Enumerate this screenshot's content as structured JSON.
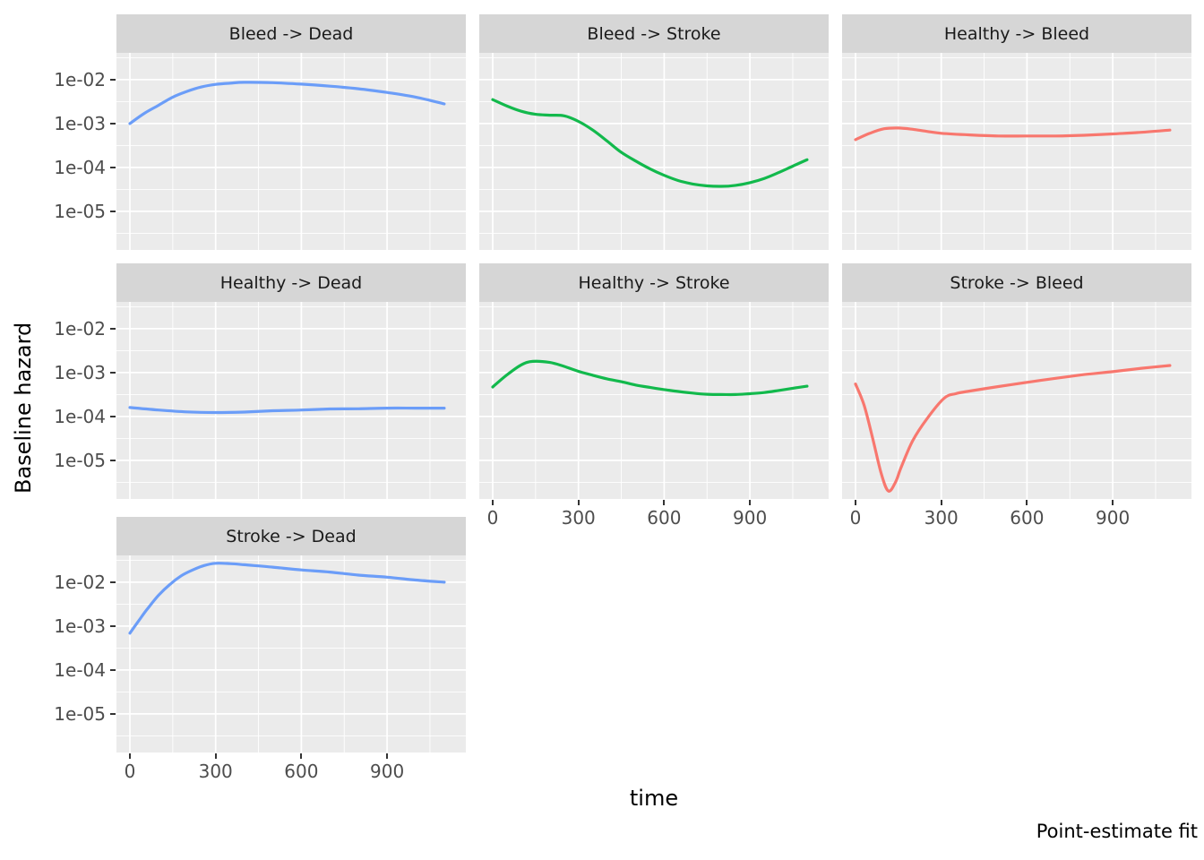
{
  "chart_data": {
    "type": "line",
    "title": "",
    "xlabel": "time",
    "ylabel": "Baseline hazard",
    "caption": "Point-estimate fit",
    "y_scale": "log10",
    "x_range": [
      0,
      1175
    ],
    "y_range_log10": [
      -5.9,
      -1.39
    ],
    "grid": true,
    "legend_position": "none",
    "x_major_ticks": [
      0,
      300,
      600,
      900
    ],
    "x_minor_ticks": [
      150,
      450,
      750,
      1050
    ],
    "y_ticks": [
      {
        "label": "1e-02",
        "value": 0.01
      },
      {
        "label": "1e-03",
        "value": 0.001
      },
      {
        "label": "1e-04",
        "value": 0.0001
      },
      {
        "label": "1e-05",
        "value": 1e-05
      }
    ],
    "y_minor_ticks_log10": [
      -1.5,
      -2.5,
      -3.5,
      -4.5,
      -5.5
    ],
    "colors": {
      "blue": "#6B9DF8",
      "green": "#12B94C",
      "red": "#F8776E",
      "panel_bg": "#EBEBEB",
      "strip_bg": "#D6D6D6",
      "gridline": "#FFFFFF",
      "tick_text": "#4D4D4D",
      "strip_text": "#1A1A1A"
    },
    "facets": [
      {
        "label": "Bleed -> Dead",
        "row": 0,
        "col": 0,
        "color": "blue",
        "show_x_axis": false,
        "show_y_axis": true,
        "time": [
          0,
          50,
          100,
          150,
          200,
          250,
          300,
          350,
          400,
          500,
          600,
          700,
          800,
          900,
          1000,
          1100
        ],
        "hazard": [
          0.001,
          0.0017,
          0.0026,
          0.004,
          0.0054,
          0.0068,
          0.0078,
          0.0083,
          0.0087,
          0.0085,
          0.0079,
          0.0071,
          0.0062,
          0.0051,
          0.004,
          0.0028
        ]
      },
      {
        "label": "Bleed -> Stroke",
        "row": 0,
        "col": 1,
        "color": "green",
        "show_x_axis": false,
        "show_y_axis": false,
        "time": [
          0,
          50,
          100,
          150,
          200,
          250,
          300,
          350,
          400,
          450,
          500,
          550,
          600,
          650,
          700,
          750,
          800,
          850,
          900,
          950,
          1000,
          1050,
          1100
        ],
        "hazard": [
          0.0035,
          0.0025,
          0.0019,
          0.00162,
          0.00155,
          0.0015,
          0.00112,
          0.00071,
          0.0004,
          0.00022,
          0.00014,
          9.3e-05,
          6.6e-05,
          5e-05,
          4.2e-05,
          3.8e-05,
          3.7e-05,
          3.9e-05,
          4.5e-05,
          5.6e-05,
          7.6e-05,
          0.000107,
          0.00015
        ]
      },
      {
        "label": "Healthy -> Bleed",
        "row": 0,
        "col": 2,
        "color": "red",
        "show_x_axis": false,
        "show_y_axis": false,
        "time": [
          0,
          50,
          100,
          150,
          200,
          250,
          300,
          400,
          500,
          600,
          700,
          800,
          900,
          1000,
          1100
        ],
        "hazard": [
          0.00043,
          0.0006,
          0.00076,
          0.00079,
          0.00074,
          0.00066,
          0.0006,
          0.00055,
          0.00052,
          0.00052,
          0.00052,
          0.00054,
          0.00058,
          0.00063,
          0.00071
        ]
      },
      {
        "label": "Healthy -> Dead",
        "row": 1,
        "col": 0,
        "color": "blue",
        "show_x_axis": false,
        "show_y_axis": true,
        "time": [
          0,
          100,
          200,
          300,
          400,
          500,
          600,
          700,
          800,
          900,
          1000,
          1100
        ],
        "hazard": [
          0.00016,
          0.00014,
          0.000127,
          0.000123,
          0.000126,
          0.000135,
          0.00014,
          0.000148,
          0.00015,
          0.000155,
          0.000155,
          0.000155
        ]
      },
      {
        "label": "Healthy -> Stroke",
        "row": 1,
        "col": 1,
        "color": "green",
        "show_x_axis": true,
        "show_y_axis": false,
        "time": [
          0,
          50,
          100,
          140,
          200,
          250,
          300,
          350,
          400,
          450,
          500,
          550,
          600,
          650,
          700,
          750,
          800,
          850,
          900,
          950,
          1000,
          1050,
          1100
        ],
        "hazard": [
          0.00047,
          0.00089,
          0.0015,
          0.0018,
          0.0017,
          0.00138,
          0.00107,
          0.00087,
          0.00072,
          0.00062,
          0.00052,
          0.00046,
          0.00041,
          0.00037,
          0.00034,
          0.00032,
          0.000316,
          0.000316,
          0.00033,
          0.00035,
          0.00039,
          0.00044,
          0.00049
        ]
      },
      {
        "label": "Stroke -> Bleed",
        "row": 1,
        "col": 2,
        "color": "red",
        "show_x_axis": true,
        "show_y_axis": false,
        "time": [
          0,
          30,
          60,
          90,
          115,
          140,
          160,
          200,
          250,
          310,
          350,
          400,
          500,
          600,
          700,
          800,
          900,
          1000,
          1100
        ],
        "hazard": [
          0.00055,
          0.00018,
          3.2e-05,
          5e-06,
          2e-06,
          3.2e-06,
          7e-06,
          2.8e-05,
          8.9e-05,
          0.00026,
          0.00033,
          0.00038,
          0.00048,
          0.0006,
          0.00074,
          0.0009,
          0.00105,
          0.00125,
          0.00145
        ]
      },
      {
        "label": "Stroke -> Dead",
        "row": 2,
        "col": 0,
        "color": "blue",
        "show_x_axis": true,
        "show_y_axis": true,
        "time": [
          0,
          30,
          60,
          100,
          140,
          180,
          220,
          260,
          300,
          350,
          400,
          500,
          600,
          700,
          800,
          900,
          1000,
          1100
        ],
        "hazard": [
          0.00069,
          0.0013,
          0.0024,
          0.005,
          0.0089,
          0.014,
          0.019,
          0.024,
          0.027,
          0.0265,
          0.025,
          0.022,
          0.019,
          0.017,
          0.0145,
          0.013,
          0.0112,
          0.01
        ]
      }
    ]
  }
}
